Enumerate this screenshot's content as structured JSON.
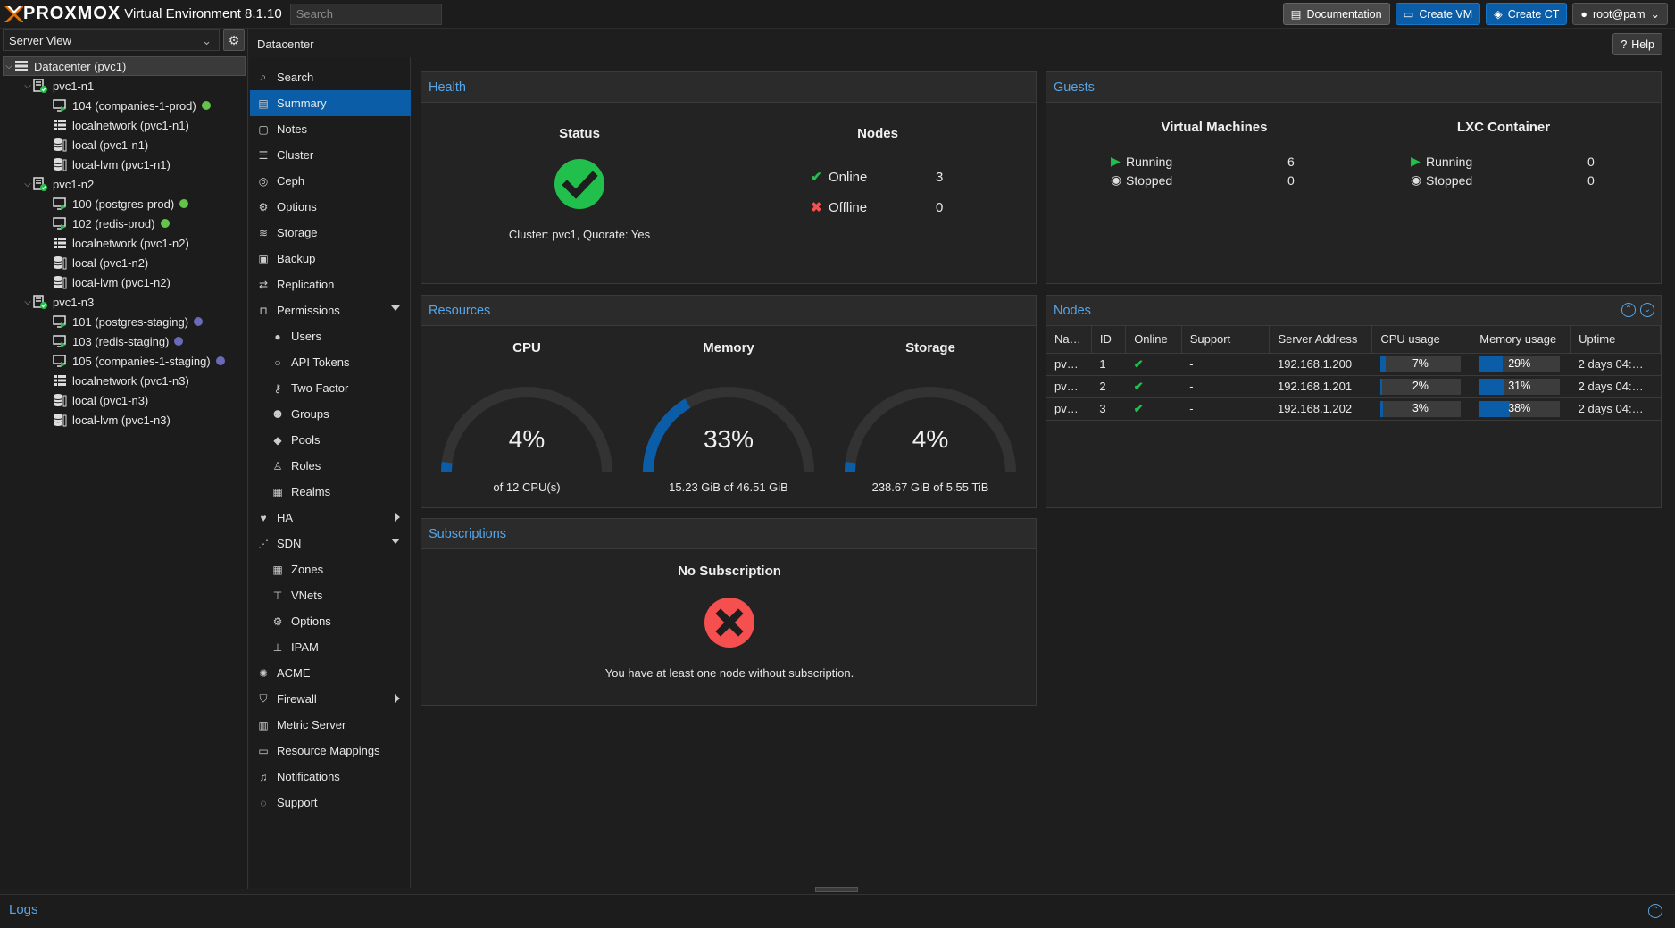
{
  "header": {
    "logo_text": "PROXMOX",
    "version": "Virtual Environment 8.1.10",
    "search_placeholder": "Search",
    "buttons": {
      "documentation": "Documentation",
      "create_vm": "Create VM",
      "create_ct": "Create CT",
      "user": "root@pam"
    }
  },
  "left": {
    "view": "Server View",
    "tree": [
      {
        "label": "Datacenter (pvc1)",
        "type": "datacenter",
        "level": 0,
        "selected": true
      },
      {
        "label": "pvc1-n1",
        "type": "node",
        "level": 1
      },
      {
        "label": "104 (companies-1-prod)",
        "type": "vm",
        "level": 2,
        "status": "green"
      },
      {
        "label": "localnetwork (pvc1-n1)",
        "type": "network",
        "level": 2
      },
      {
        "label": "local (pvc1-n1)",
        "type": "storage",
        "level": 2
      },
      {
        "label": "local-lvm (pvc1-n1)",
        "type": "storage",
        "level": 2
      },
      {
        "label": "pvc1-n2",
        "type": "node",
        "level": 1
      },
      {
        "label": "100 (postgres-prod)",
        "type": "vm",
        "level": 2,
        "status": "green"
      },
      {
        "label": "102 (redis-prod)",
        "type": "vm",
        "level": 2,
        "status": "green"
      },
      {
        "label": "localnetwork (pvc1-n2)",
        "type": "network",
        "level": 2
      },
      {
        "label": "local (pvc1-n2)",
        "type": "storage",
        "level": 2
      },
      {
        "label": "local-lvm (pvc1-n2)",
        "type": "storage",
        "level": 2
      },
      {
        "label": "pvc1-n3",
        "type": "node",
        "level": 1
      },
      {
        "label": "101 (postgres-staging)",
        "type": "vm",
        "level": 2,
        "status": "purple"
      },
      {
        "label": "103 (redis-staging)",
        "type": "vm",
        "level": 2,
        "status": "purple"
      },
      {
        "label": "105 (companies-1-staging)",
        "type": "vm",
        "level": 2,
        "status": "purple"
      },
      {
        "label": "localnetwork (pvc1-n3)",
        "type": "network",
        "level": 2
      },
      {
        "label": "local (pvc1-n3)",
        "type": "storage",
        "level": 2
      },
      {
        "label": "local-lvm (pvc1-n3)",
        "type": "storage",
        "level": 2
      }
    ]
  },
  "breadcrumb": "Datacenter",
  "help_label": "Help",
  "nav": [
    {
      "label": "Search",
      "icon": "search-icon",
      "glyph": "⌕"
    },
    {
      "label": "Summary",
      "icon": "book-icon",
      "glyph": "▤",
      "selected": true
    },
    {
      "label": "Notes",
      "icon": "note-icon",
      "glyph": "▢"
    },
    {
      "label": "Cluster",
      "icon": "server-icon",
      "glyph": "☰"
    },
    {
      "label": "Ceph",
      "icon": "ceph-icon",
      "glyph": "◎"
    },
    {
      "label": "Options",
      "icon": "gear-icon",
      "glyph": "⚙"
    },
    {
      "label": "Storage",
      "icon": "database-icon",
      "glyph": "≋"
    },
    {
      "label": "Backup",
      "icon": "floppy-icon",
      "glyph": "▣"
    },
    {
      "label": "Replication",
      "icon": "retweet-icon",
      "glyph": "⇄"
    },
    {
      "label": "Permissions",
      "icon": "unlock-icon",
      "glyph": "⊓",
      "arrow": "down"
    },
    {
      "label": "Users",
      "icon": "user-icon",
      "glyph": "●",
      "sub": true
    },
    {
      "label": "API Tokens",
      "icon": "user-outline-icon",
      "glyph": "○",
      "sub": true
    },
    {
      "label": "Two Factor",
      "icon": "key-icon",
      "glyph": "⚷",
      "sub": true
    },
    {
      "label": "Groups",
      "icon": "users-icon",
      "glyph": "⚉",
      "sub": true
    },
    {
      "label": "Pools",
      "icon": "tags-icon",
      "glyph": "◆",
      "sub": true
    },
    {
      "label": "Roles",
      "icon": "male-icon",
      "glyph": "♙",
      "sub": true
    },
    {
      "label": "Realms",
      "icon": "id-card-icon",
      "glyph": "▦",
      "sub": true
    },
    {
      "label": "HA",
      "icon": "heartbeat-icon",
      "glyph": "♥",
      "arrow": "right"
    },
    {
      "label": "SDN",
      "icon": "sdn-icon",
      "glyph": "⋰",
      "arrow": "down"
    },
    {
      "label": "Zones",
      "icon": "grid-icon",
      "glyph": "▦",
      "sub": true
    },
    {
      "label": "VNets",
      "icon": "sitemap-icon",
      "glyph": "⊤",
      "sub": true
    },
    {
      "label": "Options",
      "icon": "gear-icon",
      "glyph": "⚙",
      "sub": true
    },
    {
      "label": "IPAM",
      "icon": "signs-icon",
      "glyph": "⊥",
      "sub": true
    },
    {
      "label": "ACME",
      "icon": "certificate-icon",
      "glyph": "✺"
    },
    {
      "label": "Firewall",
      "icon": "shield-icon",
      "glyph": "⛉",
      "arrow": "right"
    },
    {
      "label": "Metric Server",
      "icon": "chart-icon",
      "glyph": "▥"
    },
    {
      "label": "Resource Mappings",
      "icon": "folder-icon",
      "glyph": "▭"
    },
    {
      "label": "Notifications",
      "icon": "bell-icon",
      "glyph": "♫"
    },
    {
      "label": "Support",
      "icon": "comments-icon",
      "glyph": "◌"
    }
  ],
  "health": {
    "title": "Health",
    "status_title": "Status",
    "status_text": "Cluster: pvc1, Quorate: Yes",
    "nodes_title": "Nodes",
    "online_label": "Online",
    "online_count": "3",
    "offline_label": "Offline",
    "offline_count": "0"
  },
  "guests": {
    "title": "Guests",
    "vm_title": "Virtual Machines",
    "lxc_title": "LXC Container",
    "running_label": "Running",
    "stopped_label": "Stopped",
    "vm_running": "6",
    "vm_stopped": "0",
    "lxc_running": "0",
    "lxc_stopped": "0"
  },
  "resources": {
    "title": "Resources",
    "gauges": [
      {
        "title": "CPU",
        "value_text": "4%",
        "value": 0.04,
        "detail": "of 12 CPU(s)"
      },
      {
        "title": "Memory",
        "value_text": "33%",
        "value": 0.33,
        "detail": "15.23 GiB of 46.51 GiB"
      },
      {
        "title": "Storage",
        "value_text": "4%",
        "value": 0.04,
        "detail": "238.67 GiB of 5.55 TiB"
      }
    ]
  },
  "subscriptions": {
    "title": "Subscriptions",
    "heading": "No Subscription",
    "text": "You have at least one node without subscription."
  },
  "nodes_grid": {
    "title": "Nodes",
    "columns": [
      "Na…",
      "ID",
      "Online",
      "Support",
      "Server Address",
      "CPU usage",
      "Memory usage",
      "Uptime"
    ],
    "rows": [
      {
        "name": "pv…",
        "id": "1",
        "support": "-",
        "address": "192.168.1.200",
        "cpu_text": "7%",
        "cpu": 0.07,
        "mem_text": "29%",
        "mem": 0.29,
        "uptime": "2 days 04:…"
      },
      {
        "name": "pv…",
        "id": "2",
        "support": "-",
        "address": "192.168.1.201",
        "cpu_text": "2%",
        "cpu": 0.02,
        "mem_text": "31%",
        "mem": 0.31,
        "uptime": "2 days 04:…"
      },
      {
        "name": "pv…",
        "id": "3",
        "support": "-",
        "address": "192.168.1.202",
        "cpu_text": "3%",
        "cpu": 0.03,
        "mem_text": "38%",
        "mem": 0.38,
        "uptime": "2 days 04:…"
      }
    ]
  },
  "logs": {
    "title": "Logs"
  },
  "colors": {
    "accent": "#0b5da7",
    "link": "#56a6e8",
    "ok": "#21bf4b",
    "error": "#f54f4f",
    "brand": "#e57000"
  }
}
